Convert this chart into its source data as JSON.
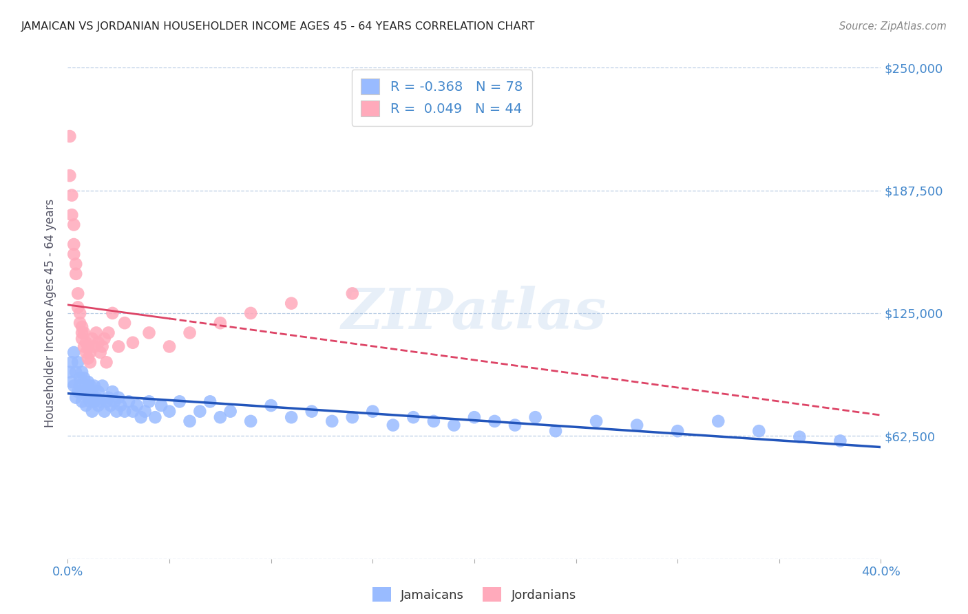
{
  "title": "JAMAICAN VS JORDANIAN HOUSEHOLDER INCOME AGES 45 - 64 YEARS CORRELATION CHART",
  "source": "Source: ZipAtlas.com",
  "ylabel": "Householder Income Ages 45 - 64 years",
  "xlim": [
    0.0,
    0.4
  ],
  "ylim": [
    0,
    250000
  ],
  "yticks": [
    0,
    62500,
    125000,
    187500,
    250000
  ],
  "ytick_labels_right": [
    "",
    "$62,500",
    "$125,000",
    "$187,500",
    "$250,000"
  ],
  "xticks": [
    0.0,
    0.05,
    0.1,
    0.15,
    0.2,
    0.25,
    0.3,
    0.35,
    0.4
  ],
  "grid_color": "#b8cce4",
  "background_color": "#ffffff",
  "watermark": "ZIPatlas",
  "legend_R_blue": "-0.368",
  "legend_N_blue": "78",
  "legend_R_pink": "0.049",
  "legend_N_pink": "44",
  "blue_color": "#99bbff",
  "pink_color": "#ffaabb",
  "trend_blue_color": "#2255bb",
  "trend_pink_color": "#dd4466",
  "axis_label_color": "#4488cc",
  "title_color": "#222222",
  "source_color": "#888888",
  "jamaicans_x": [
    0.001,
    0.002,
    0.002,
    0.003,
    0.003,
    0.004,
    0.004,
    0.005,
    0.005,
    0.006,
    0.006,
    0.007,
    0.007,
    0.008,
    0.008,
    0.009,
    0.009,
    0.01,
    0.01,
    0.011,
    0.011,
    0.012,
    0.012,
    0.013,
    0.013,
    0.014,
    0.015,
    0.015,
    0.016,
    0.017,
    0.018,
    0.019,
    0.02,
    0.021,
    0.022,
    0.023,
    0.024,
    0.025,
    0.026,
    0.028,
    0.03,
    0.032,
    0.034,
    0.036,
    0.038,
    0.04,
    0.043,
    0.046,
    0.05,
    0.055,
    0.06,
    0.065,
    0.07,
    0.075,
    0.08,
    0.09,
    0.1,
    0.11,
    0.12,
    0.13,
    0.14,
    0.15,
    0.16,
    0.17,
    0.18,
    0.19,
    0.2,
    0.21,
    0.22,
    0.23,
    0.24,
    0.26,
    0.28,
    0.3,
    0.32,
    0.34,
    0.36,
    0.38
  ],
  "jamaicans_y": [
    95000,
    100000,
    90000,
    105000,
    88000,
    95000,
    82000,
    100000,
    85000,
    92000,
    88000,
    95000,
    80000,
    92000,
    85000,
    88000,
    78000,
    90000,
    82000,
    88000,
    80000,
    85000,
    75000,
    80000,
    88000,
    82000,
    78000,
    85000,
    80000,
    88000,
    75000,
    80000,
    82000,
    78000,
    85000,
    80000,
    75000,
    82000,
    78000,
    75000,
    80000,
    75000,
    78000,
    72000,
    75000,
    80000,
    72000,
    78000,
    75000,
    80000,
    70000,
    75000,
    80000,
    72000,
    75000,
    70000,
    78000,
    72000,
    75000,
    70000,
    72000,
    75000,
    68000,
    72000,
    70000,
    68000,
    72000,
    70000,
    68000,
    72000,
    65000,
    70000,
    68000,
    65000,
    70000,
    65000,
    62000,
    60000
  ],
  "jordanians_x": [
    0.001,
    0.001,
    0.002,
    0.002,
    0.003,
    0.003,
    0.003,
    0.004,
    0.004,
    0.005,
    0.005,
    0.006,
    0.006,
    0.007,
    0.007,
    0.007,
    0.008,
    0.008,
    0.009,
    0.009,
    0.01,
    0.01,
    0.011,
    0.011,
    0.012,
    0.013,
    0.014,
    0.015,
    0.016,
    0.017,
    0.018,
    0.019,
    0.02,
    0.022,
    0.025,
    0.028,
    0.032,
    0.04,
    0.05,
    0.06,
    0.075,
    0.09,
    0.11,
    0.14
  ],
  "jordanians_y": [
    215000,
    195000,
    185000,
    175000,
    170000,
    160000,
    155000,
    150000,
    145000,
    135000,
    128000,
    125000,
    120000,
    118000,
    115000,
    112000,
    115000,
    108000,
    110000,
    105000,
    108000,
    102000,
    105000,
    100000,
    112000,
    108000,
    115000,
    110000,
    105000,
    108000,
    112000,
    100000,
    115000,
    125000,
    108000,
    120000,
    110000,
    115000,
    108000,
    115000,
    120000,
    125000,
    130000,
    135000
  ]
}
